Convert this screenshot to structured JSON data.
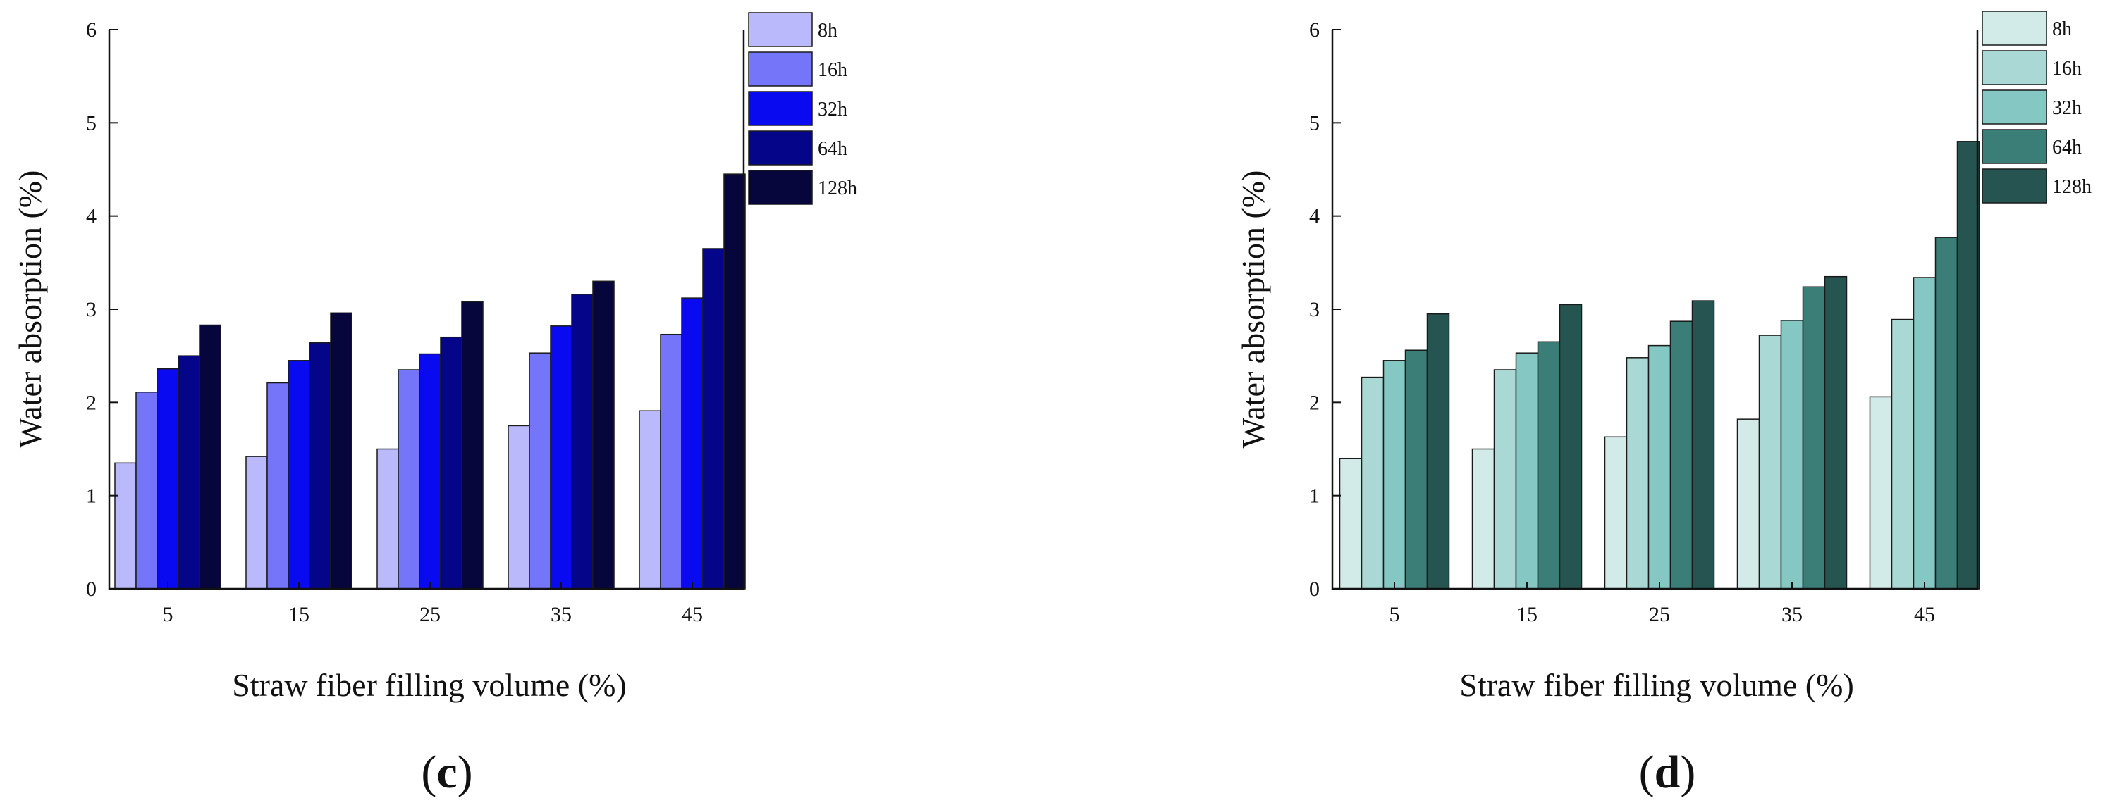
{
  "chart_data": [
    {
      "type": "bar",
      "panel": "c",
      "categories": [
        "5",
        "15",
        "25",
        "35",
        "45"
      ],
      "series": [
        {
          "name": "8h",
          "values": [
            1.35,
            1.42,
            1.5,
            1.75,
            1.91
          ],
          "color": "#B9B9FC"
        },
        {
          "name": "16h",
          "values": [
            2.11,
            2.21,
            2.35,
            2.53,
            2.73
          ],
          "color": "#7575FA"
        },
        {
          "name": "32h",
          "values": [
            2.36,
            2.45,
            2.52,
            2.82,
            3.12
          ],
          "color": "#0A0AF0"
        },
        {
          "name": "64h",
          "values": [
            2.5,
            2.64,
            2.7,
            3.16,
            3.65
          ],
          "color": "#05058A"
        },
        {
          "name": "128h",
          "values": [
            2.83,
            2.96,
            3.08,
            3.3,
            4.45
          ],
          "color": "#06063C"
        }
      ],
      "xlabel": "Straw fiber filling volume (%)",
      "ylabel": "Water absorption (%)",
      "ylim": [
        0,
        6
      ],
      "yticks": [
        0,
        1,
        2,
        3,
        4,
        5,
        6
      ],
      "legend_position": "top-right",
      "caption": {
        "open": "(",
        "letter": "c",
        "close": ")"
      }
    },
    {
      "type": "bar",
      "panel": "d",
      "categories": [
        "5",
        "15",
        "25",
        "35",
        "45"
      ],
      "series": [
        {
          "name": "8h",
          "values": [
            1.4,
            1.5,
            1.63,
            1.82,
            2.06
          ],
          "color": "#D3EBE8"
        },
        {
          "name": "16h",
          "values": [
            2.27,
            2.35,
            2.48,
            2.72,
            2.89
          ],
          "color": "#AAD9D5"
        },
        {
          "name": "32h",
          "values": [
            2.45,
            2.53,
            2.61,
            2.88,
            3.34
          ],
          "color": "#85C7C3"
        },
        {
          "name": "64h",
          "values": [
            2.56,
            2.65,
            2.87,
            3.24,
            3.77
          ],
          "color": "#3A7E77"
        },
        {
          "name": "128h",
          "values": [
            2.95,
            3.05,
            3.09,
            3.35,
            4.8
          ],
          "color": "#265450"
        }
      ],
      "xlabel": "Straw fiber filling volume (%)",
      "ylabel": "Water absorption (%)",
      "ylim": [
        0,
        6
      ],
      "yticks": [
        0,
        1,
        2,
        3,
        4,
        5,
        6
      ],
      "legend_position": "top-right",
      "caption": {
        "open": "(",
        "letter": "d",
        "close": ")"
      }
    }
  ]
}
